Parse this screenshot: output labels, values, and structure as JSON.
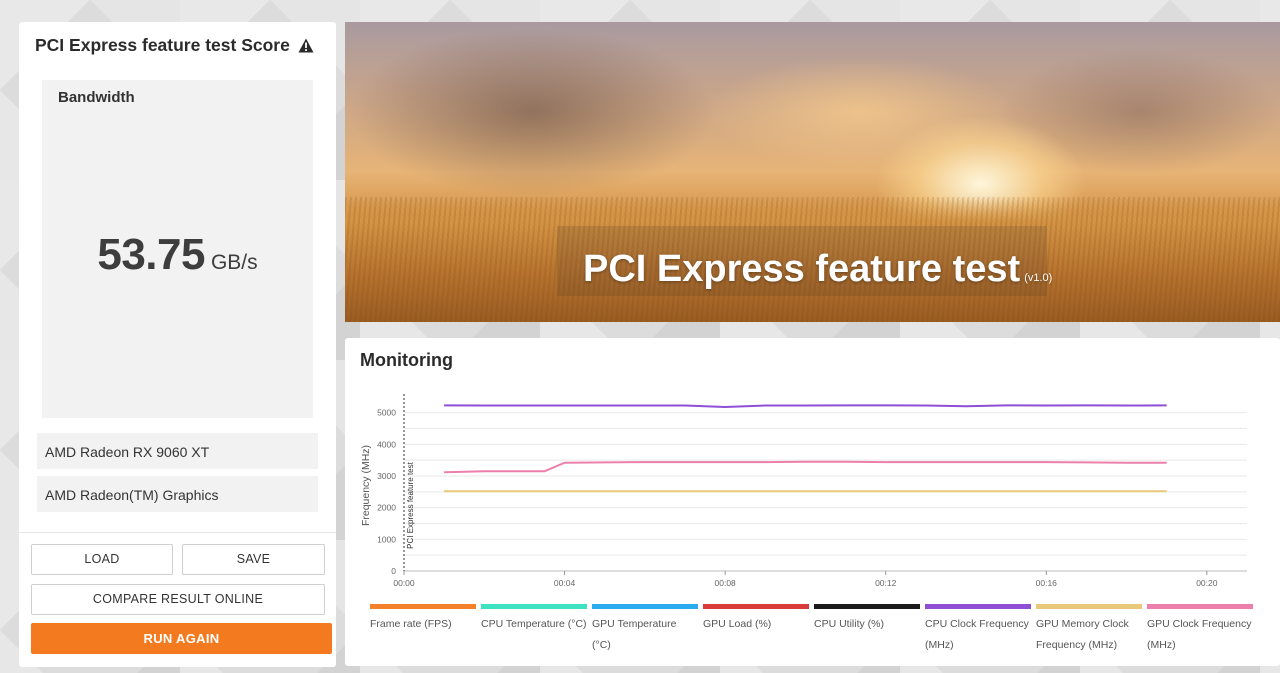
{
  "score_panel": {
    "title": "PCI Express feature test Score",
    "warning_icon": "warning-triangle-icon",
    "bandwidth_label": "Bandwidth",
    "score_value": "53.75",
    "score_unit": "GB/s",
    "gpus": [
      "AMD Radeon RX 9060 XT",
      "AMD Radeon(TM) Graphics"
    ],
    "buttons": {
      "load": "LOAD",
      "save": "SAVE",
      "compare": "COMPARE RESULT ONLINE",
      "run_again": "RUN AGAIN"
    },
    "accent_color": "#f47a20"
  },
  "hero": {
    "title": "PCI Express feature test",
    "version": "(v1.0)"
  },
  "monitoring": {
    "title": "Monitoring",
    "chart_data": {
      "type": "line",
      "ylabel": "Frequency (MHz)",
      "xlabel": "",
      "marker_label": "PCI Express feature test",
      "x_tick_labels": [
        "00:00",
        "00:04",
        "00:08",
        "00:12",
        "00:16",
        "00:20"
      ],
      "y_tick_labels": [
        "0",
        "1000",
        "2000",
        "3000",
        "4000",
        "5000"
      ],
      "xlim_seconds": [
        0,
        1260
      ],
      "ylim": [
        0,
        5400
      ],
      "grid": true,
      "series": [
        {
          "name": "CPU Clock Frequency (MHz)",
          "color": "#8e4fd6",
          "x": [
            60,
            120,
            180,
            240,
            300,
            360,
            420,
            480,
            540,
            600,
            660,
            720,
            780,
            840,
            900,
            960,
            1020,
            1080,
            1140
          ],
          "values": [
            5230,
            5225,
            5225,
            5225,
            5225,
            5225,
            5225,
            5180,
            5225,
            5225,
            5230,
            5230,
            5225,
            5200,
            5230,
            5225,
            5230,
            5225,
            5230
          ]
        },
        {
          "name": "GPU Clock Frequency (MHz)",
          "color": "#ec7fab",
          "x": [
            60,
            120,
            180,
            210,
            240,
            300,
            360,
            420,
            480,
            540,
            600,
            660,
            720,
            780,
            840,
            900,
            960,
            1020,
            1080,
            1140
          ],
          "values": [
            3120,
            3150,
            3150,
            3150,
            3420,
            3430,
            3440,
            3440,
            3440,
            3440,
            3450,
            3450,
            3440,
            3440,
            3440,
            3440,
            3440,
            3430,
            3420,
            3420
          ]
        },
        {
          "name": "GPU Memory Clock Frequency (MHz)",
          "color": "#e8c97a",
          "x": [
            60,
            1140
          ],
          "values": [
            2518,
            2518
          ]
        }
      ],
      "legend": [
        {
          "label": "Frame rate (FPS)",
          "color": "#f5812a"
        },
        {
          "label": "CPU Temperature (°C)",
          "color": "#3de3c0"
        },
        {
          "label": "GPU Temperature (°C)",
          "color": "#2baaf0"
        },
        {
          "label": "GPU Load (%)",
          "color": "#d93a3a"
        },
        {
          "label": "CPU Utility (%)",
          "color": "#1a1a1a"
        },
        {
          "label": "CPU Clock Frequency (MHz)",
          "color": "#8e4fd6"
        },
        {
          "label": "GPU Memory Clock Frequency (MHz)",
          "color": "#e8c97a"
        },
        {
          "label": "GPU Clock Frequency (MHz)",
          "color": "#ec7fab"
        }
      ]
    }
  }
}
